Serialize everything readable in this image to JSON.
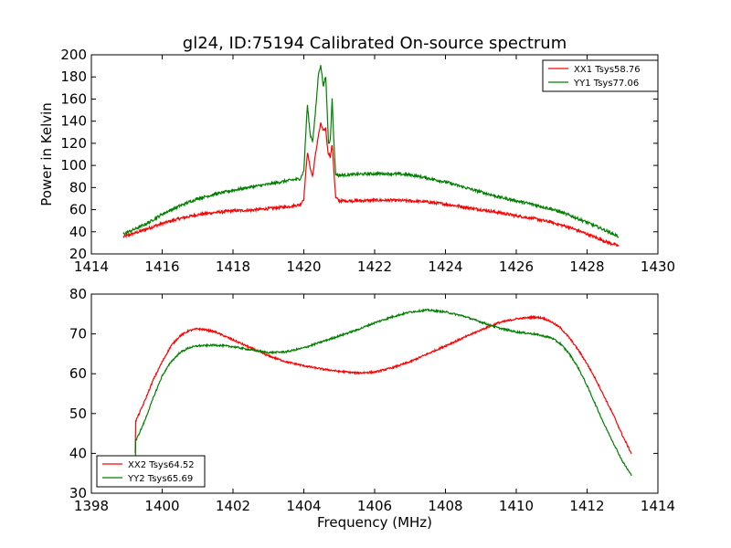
{
  "chart_data": [
    {
      "type": "line",
      "title": "gl24, ID:75194 Calibrated On-source spectrum",
      "xlabel": "",
      "ylabel": "Power in Kelvin",
      "xlim": [
        1414,
        1430
      ],
      "ylim": [
        20,
        200
      ],
      "xticks": [
        1414,
        1416,
        1418,
        1420,
        1422,
        1424,
        1426,
        1428,
        1430
      ],
      "yticks": [
        20,
        40,
        60,
        80,
        100,
        120,
        140,
        160,
        180,
        200
      ],
      "legend_position": "top-right",
      "series": [
        {
          "name": "XX1 Tsys58.76",
          "color": "#ff0000",
          "points": [
            [
              1414.9,
              35.5
            ],
            [
              1415.2,
              38.5
            ],
            [
              1415.6,
              43
            ],
            [
              1416.0,
              47.5
            ],
            [
              1416.5,
              52
            ],
            [
              1417.0,
              55.5
            ],
            [
              1417.5,
              57.5
            ],
            [
              1418.0,
              59
            ],
            [
              1418.5,
              59.5
            ],
            [
              1419.0,
              61
            ],
            [
              1419.5,
              62.5
            ],
            [
              1419.9,
              64.5
            ],
            [
              1420.0,
              70
            ],
            [
              1420.1,
              112
            ],
            [
              1420.2,
              95
            ],
            [
              1420.25,
              90
            ],
            [
              1420.3,
              103
            ],
            [
              1420.4,
              125
            ],
            [
              1420.48,
              138
            ],
            [
              1420.55,
              131
            ],
            [
              1420.62,
              133
            ],
            [
              1420.68,
              112
            ],
            [
              1420.75,
              108
            ],
            [
              1420.8,
              119
            ],
            [
              1420.85,
              95
            ],
            [
              1420.9,
              71
            ],
            [
              1421.0,
              68
            ],
            [
              1421.5,
              68
            ],
            [
              1422.0,
              68.5
            ],
            [
              1422.5,
              68.5
            ],
            [
              1423.0,
              68
            ],
            [
              1423.5,
              67
            ],
            [
              1424.0,
              65
            ],
            [
              1424.5,
              62.5
            ],
            [
              1425.0,
              60
            ],
            [
              1425.5,
              57.5
            ],
            [
              1426.0,
              54.5
            ],
            [
              1426.5,
              52
            ],
            [
              1427.0,
              48.5
            ],
            [
              1427.5,
              44
            ],
            [
              1428.0,
              38
            ],
            [
              1428.5,
              31.5
            ],
            [
              1428.9,
              27
            ]
          ]
        },
        {
          "name": "YY1 Tsys77.06",
          "color": "#008000",
          "points": [
            [
              1414.9,
              38
            ],
            [
              1415.2,
              42
            ],
            [
              1415.6,
              48
            ],
            [
              1416.0,
              56
            ],
            [
              1416.5,
              63.5
            ],
            [
              1417.0,
              70
            ],
            [
              1417.5,
              74
            ],
            [
              1418.0,
              77.5
            ],
            [
              1418.5,
              80.5
            ],
            [
              1419.0,
              83
            ],
            [
              1419.5,
              86
            ],
            [
              1419.9,
              88
            ],
            [
              1420.0,
              95
            ],
            [
              1420.1,
              155
            ],
            [
              1420.18,
              128
            ],
            [
              1420.25,
              122
            ],
            [
              1420.32,
              145
            ],
            [
              1420.42,
              185
            ],
            [
              1420.48,
              190
            ],
            [
              1420.55,
              172
            ],
            [
              1420.62,
              180
            ],
            [
              1420.7,
              118
            ],
            [
              1420.75,
              125
            ],
            [
              1420.8,
              160
            ],
            [
              1420.85,
              120
            ],
            [
              1420.9,
              92
            ],
            [
              1421.0,
              91
            ],
            [
              1421.5,
              92
            ],
            [
              1422.0,
              92.5
            ],
            [
              1422.5,
              92.5
            ],
            [
              1423.0,
              91.5
            ],
            [
              1423.5,
              88.5
            ],
            [
              1424.0,
              85
            ],
            [
              1424.5,
              80.5
            ],
            [
              1425.0,
              76
            ],
            [
              1425.5,
              71.5
            ],
            [
              1426.0,
              68
            ],
            [
              1426.5,
              64.5
            ],
            [
              1427.0,
              60.5
            ],
            [
              1427.5,
              55
            ],
            [
              1428.0,
              48.5
            ],
            [
              1428.5,
              41.5
            ],
            [
              1428.9,
              35.5
            ]
          ]
        }
      ]
    },
    {
      "type": "line",
      "title": "",
      "xlabel": "Frequency (MHz)",
      "ylabel": "",
      "xlim": [
        1398,
        1414
      ],
      "ylim": [
        30,
        80
      ],
      "xticks": [
        1398,
        1400,
        1402,
        1404,
        1406,
        1408,
        1410,
        1412,
        1414
      ],
      "yticks": [
        30,
        40,
        50,
        60,
        70,
        80
      ],
      "legend_position": "bottom-left",
      "series": [
        {
          "name": "XX2 Tsys64.52",
          "color": "#ff0000",
          "points": [
            [
              1399.25,
              48
            ],
            [
              1399.5,
              53
            ],
            [
              1399.75,
              58.5
            ],
            [
              1400.0,
              63
            ],
            [
              1400.25,
              67
            ],
            [
              1400.5,
              69.5
            ],
            [
              1400.75,
              70.8
            ],
            [
              1401.0,
              71.3
            ],
            [
              1401.25,
              71
            ],
            [
              1401.5,
              70.5
            ],
            [
              1401.75,
              69.5
            ],
            [
              1402.0,
              68.5
            ],
            [
              1402.5,
              66.5
            ],
            [
              1403.0,
              64.5
            ],
            [
              1403.5,
              63
            ],
            [
              1404.0,
              62
            ],
            [
              1404.5,
              61.2
            ],
            [
              1405.0,
              60.6
            ],
            [
              1405.5,
              60.2
            ],
            [
              1406.0,
              60.4
            ],
            [
              1406.5,
              61.5
            ],
            [
              1407.0,
              63
            ],
            [
              1407.5,
              65
            ],
            [
              1408.0,
              67
            ],
            [
              1408.5,
              69
            ],
            [
              1409.0,
              71
            ],
            [
              1409.5,
              72.8
            ],
            [
              1410.0,
              73.8
            ],
            [
              1410.5,
              74.2
            ],
            [
              1410.75,
              74
            ],
            [
              1411.0,
              73
            ],
            [
              1411.25,
              71.5
            ],
            [
              1411.5,
              69
            ],
            [
              1411.75,
              66
            ],
            [
              1412.0,
              62.5
            ],
            [
              1412.25,
              58.5
            ],
            [
              1412.5,
              54
            ],
            [
              1412.75,
              49.5
            ],
            [
              1413.0,
              44.5
            ],
            [
              1413.25,
              40
            ]
          ]
        },
        {
          "name": "YY2 Tsys65.69",
          "color": "#008000",
          "points": [
            [
              1399.25,
              43
            ],
            [
              1399.5,
              48
            ],
            [
              1399.75,
              54
            ],
            [
              1400.0,
              59.5
            ],
            [
              1400.25,
              63
            ],
            [
              1400.5,
              65.3
            ],
            [
              1400.75,
              66.5
            ],
            [
              1401.0,
              67
            ],
            [
              1401.5,
              67.2
            ],
            [
              1402.0,
              66.8
            ],
            [
              1402.5,
              66
            ],
            [
              1403.0,
              65.3
            ],
            [
              1403.5,
              65.5
            ],
            [
              1404.0,
              66.5
            ],
            [
              1404.5,
              68
            ],
            [
              1405.0,
              69.5
            ],
            [
              1405.5,
              71
            ],
            [
              1406.0,
              72.8
            ],
            [
              1406.5,
              74.3
            ],
            [
              1407.0,
              75.5
            ],
            [
              1407.5,
              76
            ],
            [
              1408.0,
              75.5
            ],
            [
              1408.5,
              74.5
            ],
            [
              1409.0,
              73
            ],
            [
              1409.5,
              71.5
            ],
            [
              1410.0,
              70.5
            ],
            [
              1410.5,
              70
            ],
            [
              1411.0,
              69
            ],
            [
              1411.25,
              67.5
            ],
            [
              1411.5,
              65
            ],
            [
              1411.75,
              61.5
            ],
            [
              1412.0,
              57
            ],
            [
              1412.25,
              52
            ],
            [
              1412.5,
              47
            ],
            [
              1412.75,
              42.5
            ],
            [
              1413.0,
              38
            ],
            [
              1413.25,
              34.5
            ]
          ]
        }
      ]
    }
  ]
}
